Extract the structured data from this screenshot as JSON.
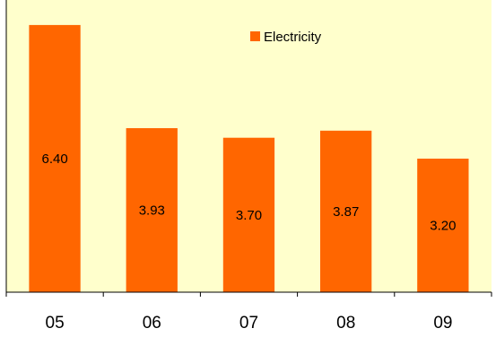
{
  "chart_data": {
    "type": "bar",
    "categories": [
      "05",
      "06",
      "07",
      "08",
      "09"
    ],
    "series": [
      {
        "name": "Electricity",
        "values": [
          6.4,
          3.93,
          3.7,
          3.87,
          3.2
        ]
      }
    ],
    "data_labels": [
      "6.40",
      "3.93",
      "3.70",
      "3.87",
      "3.20"
    ],
    "ylim": [
      0,
      7
    ],
    "grid": false,
    "legend_position": "top-right",
    "colors": {
      "bar": "#ff6600",
      "plot_background": "#ffffcc",
      "axis": "#000000"
    }
  }
}
